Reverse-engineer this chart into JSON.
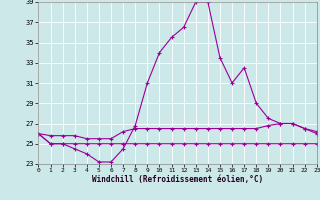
{
  "xlabel": "Windchill (Refroidissement éolien,°C)",
  "background_color": "#cce8e8",
  "grid_color": "#ffffff",
  "line_color": "#990099",
  "x": [
    0,
    1,
    2,
    3,
    4,
    5,
    6,
    7,
    8,
    9,
    10,
    11,
    12,
    13,
    14,
    15,
    16,
    17,
    18,
    19,
    20,
    21,
    22,
    23
  ],
  "line1": [
    26,
    25,
    25,
    24.5,
    24,
    23.2,
    23.2,
    24.5,
    26.8,
    31,
    34,
    35.5,
    36.5,
    39,
    39,
    33.5,
    31,
    32.5,
    29,
    27.5,
    27,
    27,
    26.5,
    26
  ],
  "line2": [
    26,
    25.8,
    25.8,
    25.8,
    25.5,
    25.5,
    25.5,
    26.2,
    26.5,
    26.5,
    26.5,
    26.5,
    26.5,
    26.5,
    26.5,
    26.5,
    26.5,
    26.5,
    26.5,
    26.8,
    27,
    27,
    26.5,
    26.2
  ],
  "line3": [
    26,
    25,
    25,
    25,
    25,
    25,
    25,
    25,
    25,
    25,
    25,
    25,
    25,
    25,
    25,
    25,
    25,
    25,
    25,
    25,
    25,
    25,
    25,
    25
  ],
  "ylim": [
    23,
    39
  ],
  "yticks": [
    23,
    25,
    27,
    29,
    31,
    33,
    35,
    37,
    39
  ],
  "xticks": [
    0,
    1,
    2,
    3,
    4,
    5,
    6,
    7,
    8,
    9,
    10,
    11,
    12,
    13,
    14,
    15,
    16,
    17,
    18,
    19,
    20,
    21,
    22,
    23
  ],
  "marker": "+",
  "markersize": 3,
  "linewidth": 0.8
}
